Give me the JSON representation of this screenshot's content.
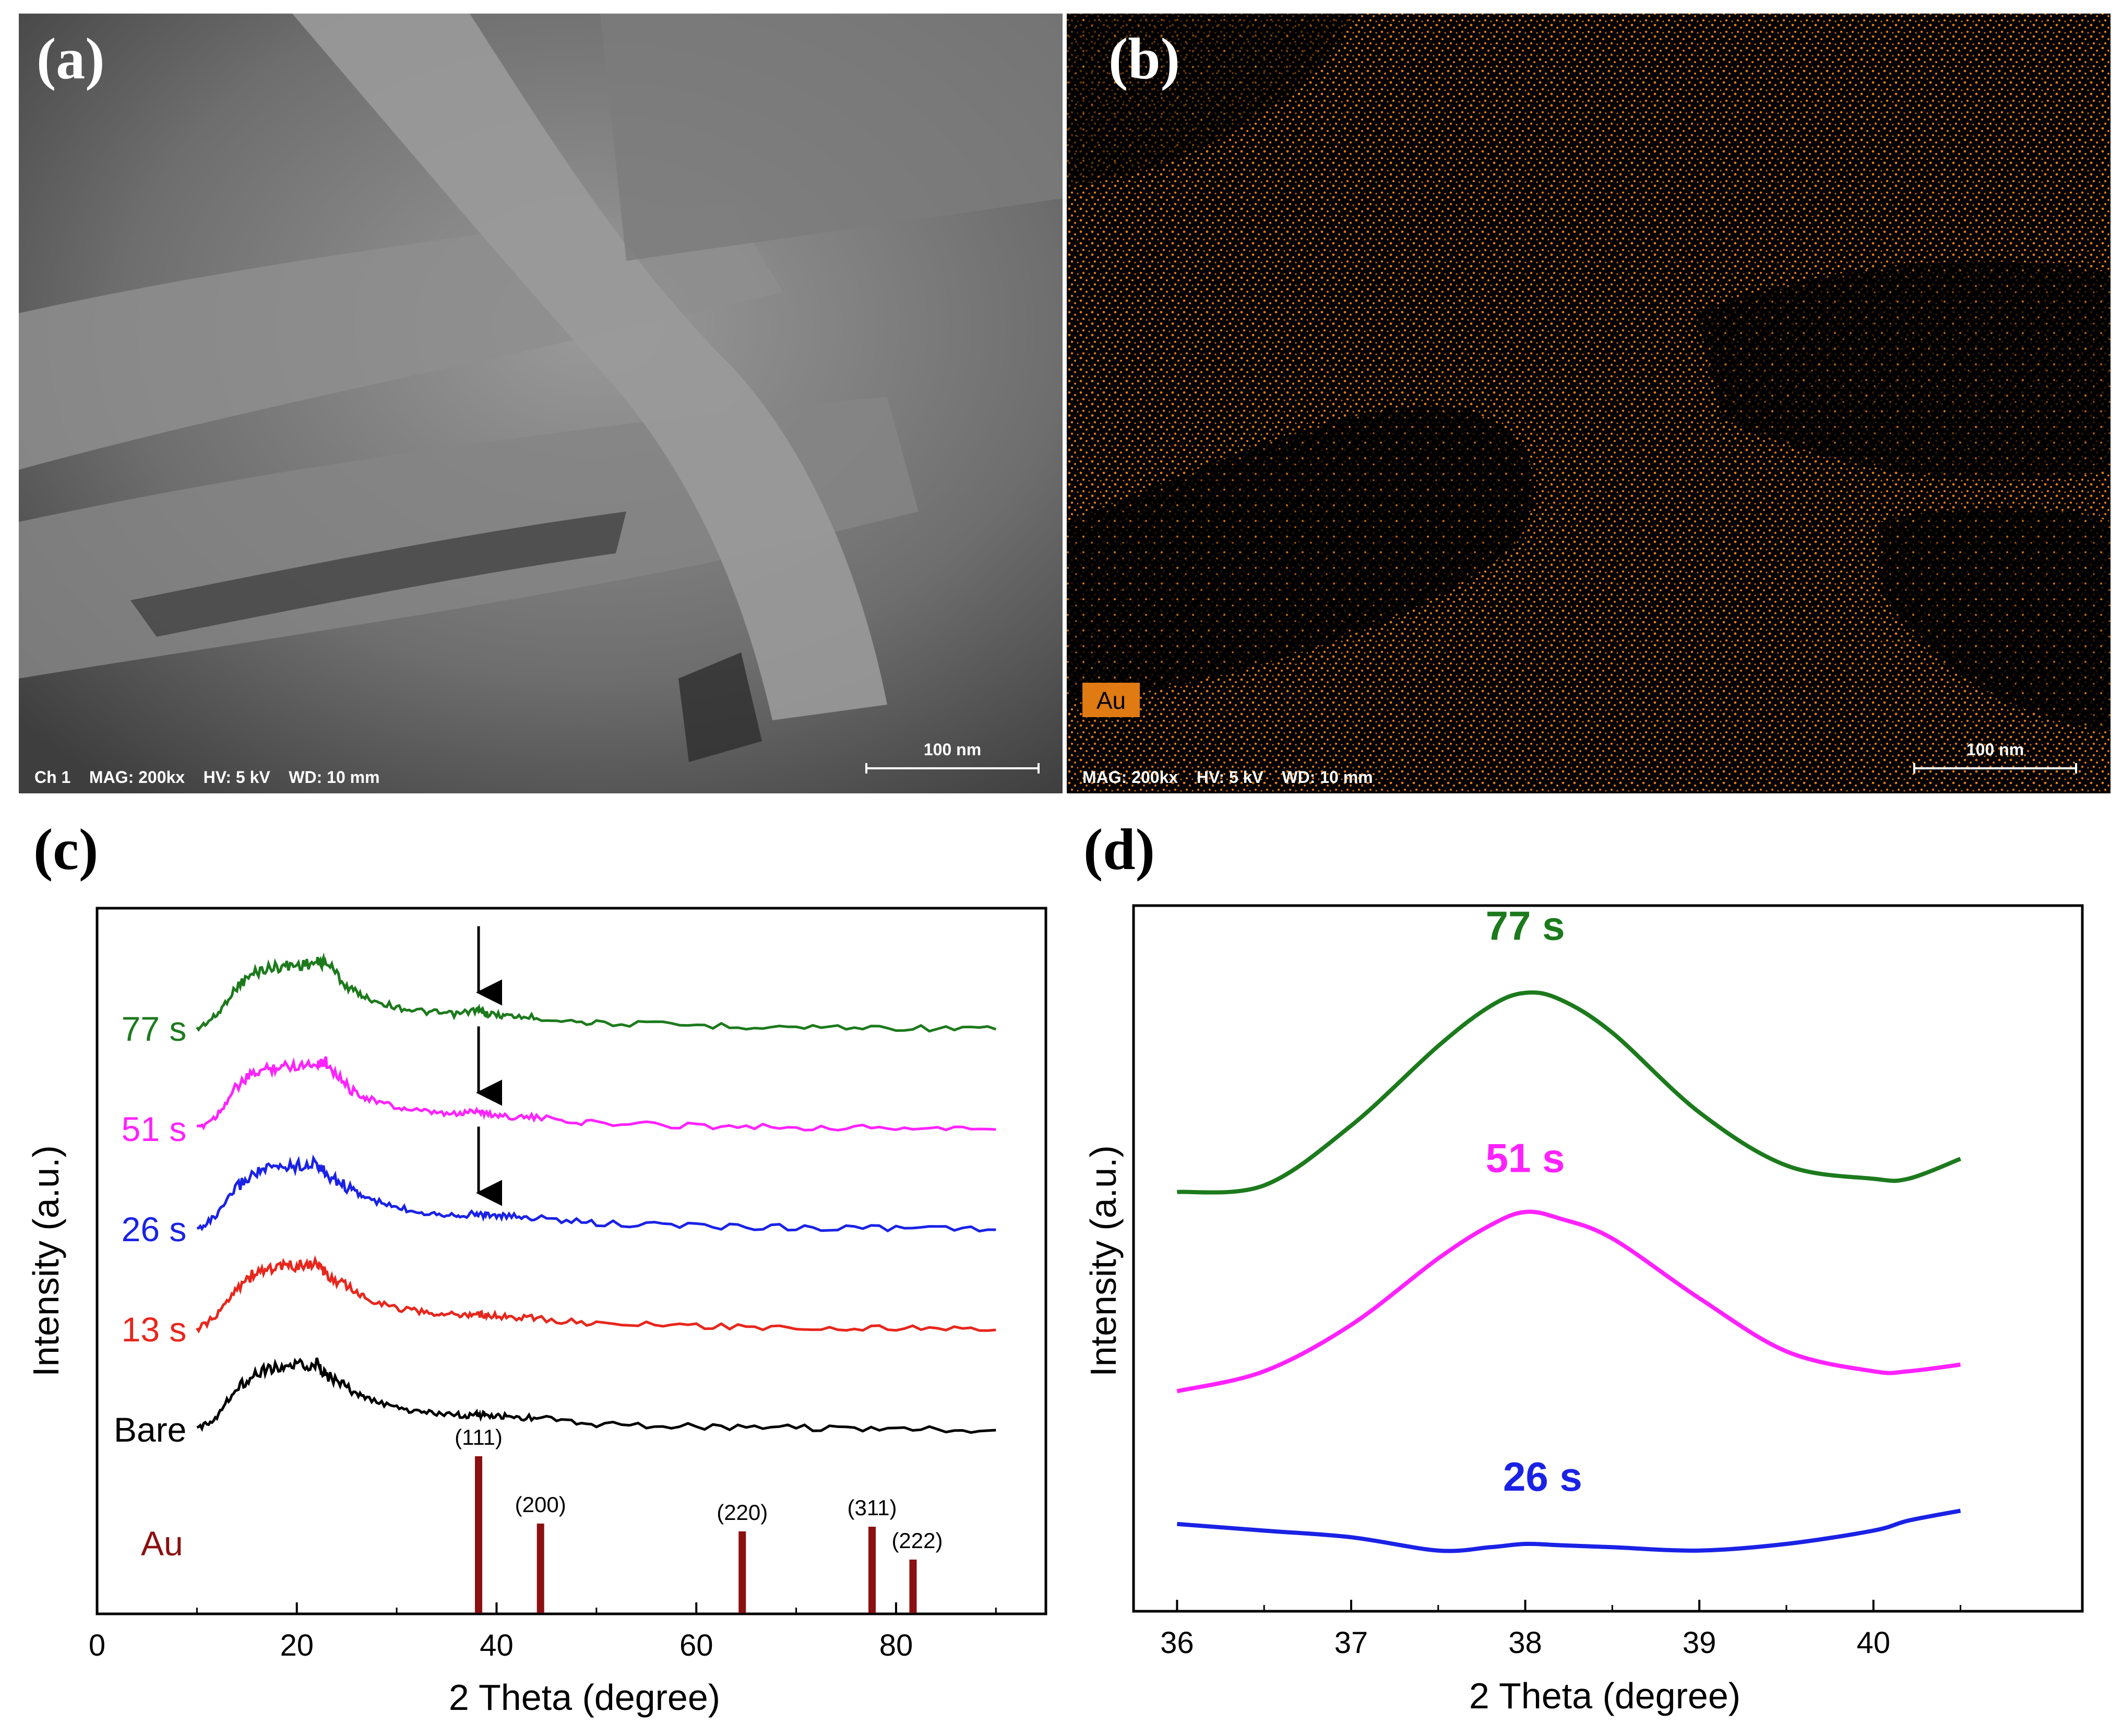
{
  "panels": {
    "a": {
      "label": "(a)",
      "info_bar": "Ch 1    MAG: 200kx    HV: 5 kV    WD: 10 mm",
      "scale_bar": "100 nm"
    },
    "b": {
      "label": "(b)",
      "element_badge": "Au",
      "info_bar": "MAG: 200kx    HV: 5 kV    WD: 10 mm",
      "scale_bar": "100 nm"
    },
    "c": {
      "label": "(c)"
    },
    "d": {
      "label": "(d)"
    }
  },
  "colors": {
    "sem_gray": "#6b6b6b",
    "eds_orange": "#e07a12",
    "bare": "#000000",
    "s13": "#e8261c",
    "s26": "#1a22e6",
    "s51": "#ff22ff",
    "s77": "#1c7a1c",
    "au_ref": "#8b1010"
  },
  "chart_data": [
    {
      "type": "line",
      "title": "(c)",
      "xlabel": "2 Theta (degree)",
      "ylabel": "Intensity (a.u.)",
      "xlim": [
        0,
        95
      ],
      "xticks": [
        0,
        20,
        40,
        60,
        80
      ],
      "series": [
        {
          "name": "77 s",
          "color": "#1c7a1c",
          "offset": 4,
          "x": [
            10,
            12,
            14,
            16,
            18,
            20,
            22,
            23,
            25,
            27,
            30,
            33,
            36,
            38,
            39,
            41,
            44,
            50,
            60,
            70,
            80,
            90
          ],
          "y": [
            0.0,
            0.18,
            0.55,
            0.74,
            0.8,
            0.82,
            0.85,
            0.86,
            0.55,
            0.4,
            0.28,
            0.22,
            0.19,
            0.25,
            0.2,
            0.17,
            0.15,
            0.08,
            0.05,
            0.03,
            0.02,
            0.0
          ]
        },
        {
          "name": "51 s",
          "color": "#ff22ff",
          "offset": 3,
          "x": [
            10,
            12,
            14,
            16,
            18,
            20,
            22,
            23,
            25,
            27,
            30,
            33,
            36,
            38,
            39,
            41,
            44,
            50,
            60,
            70,
            80,
            90
          ],
          "y": [
            0.0,
            0.18,
            0.55,
            0.74,
            0.8,
            0.82,
            0.85,
            0.86,
            0.55,
            0.4,
            0.28,
            0.22,
            0.19,
            0.25,
            0.2,
            0.17,
            0.15,
            0.08,
            0.05,
            0.03,
            0.02,
            0.0
          ]
        },
        {
          "name": "26 s",
          "color": "#1a22e6",
          "offset": 2,
          "x": [
            10,
            12,
            14,
            16,
            18,
            20,
            22,
            23,
            25,
            27,
            30,
            33,
            36,
            38,
            39,
            41,
            44,
            50,
            60,
            70,
            80,
            90
          ],
          "y": [
            0.0,
            0.18,
            0.55,
            0.74,
            0.8,
            0.82,
            0.85,
            0.7,
            0.55,
            0.4,
            0.28,
            0.22,
            0.19,
            0.2,
            0.19,
            0.17,
            0.15,
            0.08,
            0.05,
            0.03,
            0.02,
            0.0
          ]
        },
        {
          "name": "13 s",
          "color": "#e8261c",
          "offset": 1,
          "x": [
            10,
            12,
            14,
            16,
            18,
            20,
            22,
            23,
            25,
            27,
            30,
            33,
            36,
            38,
            39,
            41,
            44,
            50,
            60,
            70,
            80,
            90
          ],
          "y": [
            0.0,
            0.18,
            0.55,
            0.74,
            0.8,
            0.82,
            0.85,
            0.7,
            0.55,
            0.4,
            0.28,
            0.22,
            0.19,
            0.2,
            0.19,
            0.17,
            0.15,
            0.08,
            0.05,
            0.03,
            0.02,
            0.0
          ]
        },
        {
          "name": "Bare",
          "color": "#000000",
          "offset": 0,
          "x": [
            10,
            12,
            14,
            16,
            18,
            20,
            22,
            23,
            25,
            27,
            30,
            33,
            36,
            38,
            39,
            41,
            44,
            50,
            60,
            70,
            80,
            90
          ],
          "y": [
            0.0,
            0.18,
            0.55,
            0.74,
            0.8,
            0.82,
            0.85,
            0.7,
            0.55,
            0.4,
            0.28,
            0.22,
            0.19,
            0.2,
            0.19,
            0.17,
            0.15,
            0.08,
            0.05,
            0.03,
            0.02,
            0.0
          ]
        }
      ],
      "arrows_at_x": [
        38.2,
        38.2,
        38.2
      ],
      "reference": {
        "name": "Au",
        "color": "#8b1010",
        "peaks": [
          {
            "x": 38.2,
            "rel_intensity": 100,
            "label": "(111)"
          },
          {
            "x": 44.4,
            "rel_intensity": 57,
            "label": "(200)"
          },
          {
            "x": 64.6,
            "rel_intensity": 52,
            "label": "(220)"
          },
          {
            "x": 77.6,
            "rel_intensity": 55,
            "label": "(311)"
          },
          {
            "x": 81.7,
            "rel_intensity": 34,
            "label": "(222)"
          }
        ]
      }
    },
    {
      "type": "line",
      "title": "(d)",
      "xlabel": "2 Theta (degree)",
      "ylabel": "Intensity (a.u.)",
      "xlim": [
        35.75,
        41.2
      ],
      "xticks": [
        36,
        37,
        38,
        39,
        40
      ],
      "ylim": [
        0,
        1
      ],
      "series": [
        {
          "name": "77 s",
          "color": "#1c7a1c",
          "x": [
            36,
            36.5,
            37,
            37.5,
            37.8,
            38.0,
            38.2,
            38.5,
            39.0,
            39.5,
            40.0,
            40.2,
            40.5
          ],
          "y": [
            0.6,
            0.61,
            0.7,
            0.82,
            0.88,
            0.9,
            0.89,
            0.84,
            0.72,
            0.64,
            0.62,
            0.62,
            0.65
          ]
        },
        {
          "name": "51 s",
          "color": "#ff22ff",
          "x": [
            36,
            36.5,
            37,
            37.5,
            37.8,
            38.0,
            38.2,
            38.5,
            39.0,
            39.5,
            40.0,
            40.2,
            40.5
          ],
          "y": [
            0.3,
            0.33,
            0.4,
            0.5,
            0.55,
            0.57,
            0.56,
            0.53,
            0.44,
            0.36,
            0.33,
            0.33,
            0.34
          ]
        },
        {
          "name": "26 s",
          "color": "#1a22e6",
          "x": [
            36,
            36.5,
            37,
            37.5,
            37.8,
            38.0,
            38.2,
            38.5,
            39.0,
            39.5,
            40.0,
            40.2,
            40.5
          ],
          "y": [
            0.1,
            0.09,
            0.08,
            0.06,
            0.065,
            0.07,
            0.068,
            0.065,
            0.06,
            0.07,
            0.09,
            0.105,
            0.12
          ]
        }
      ],
      "label_positions": [
        {
          "name": "77 s",
          "x": 38.0,
          "y": 0.98
        },
        {
          "name": "51 s",
          "x": 38.0,
          "y": 0.63
        },
        {
          "name": "26 s",
          "x": 38.1,
          "y": 0.15
        }
      ]
    }
  ]
}
